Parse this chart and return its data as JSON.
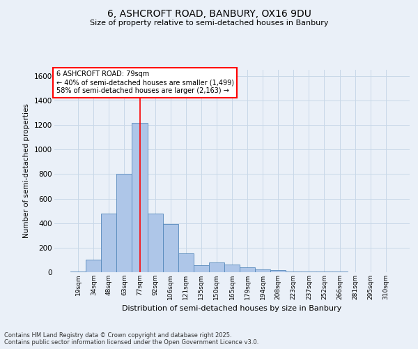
{
  "title_line1": "6, ASHCROFT ROAD, BANBURY, OX16 9DU",
  "title_line2": "Size of property relative to semi-detached houses in Banbury",
  "xlabel": "Distribution of semi-detached houses by size in Banbury",
  "ylabel": "Number of semi-detached properties",
  "categories": [
    "19sqm",
    "34sqm",
    "48sqm",
    "63sqm",
    "77sqm",
    "92sqm",
    "106sqm",
    "121sqm",
    "135sqm",
    "150sqm",
    "165sqm",
    "179sqm",
    "194sqm",
    "208sqm",
    "223sqm",
    "237sqm",
    "252sqm",
    "266sqm",
    "281sqm",
    "295sqm",
    "310sqm"
  ],
  "values": [
    5,
    100,
    480,
    800,
    1215,
    480,
    390,
    155,
    55,
    80,
    60,
    40,
    20,
    15,
    8,
    5,
    5,
    3,
    2,
    2,
    1
  ],
  "bar_color": "#aec6e8",
  "bar_edge_color": "#5588bb",
  "grid_color": "#c8d8e8",
  "background_color": "#eaf0f8",
  "vline_x_index": 4,
  "vline_color": "red",
  "annotation_box_text": "6 ASHCROFT ROAD: 79sqm\n← 40% of semi-detached houses are smaller (1,499)\n58% of semi-detached houses are larger (2,163) →",
  "annotation_box_color": "white",
  "annotation_box_edge_color": "red",
  "ylim": [
    0,
    1650
  ],
  "yticks": [
    0,
    200,
    400,
    600,
    800,
    1000,
    1200,
    1400,
    1600
  ],
  "footer_line1": "Contains HM Land Registry data © Crown copyright and database right 2025.",
  "footer_line2": "Contains public sector information licensed under the Open Government Licence v3.0."
}
